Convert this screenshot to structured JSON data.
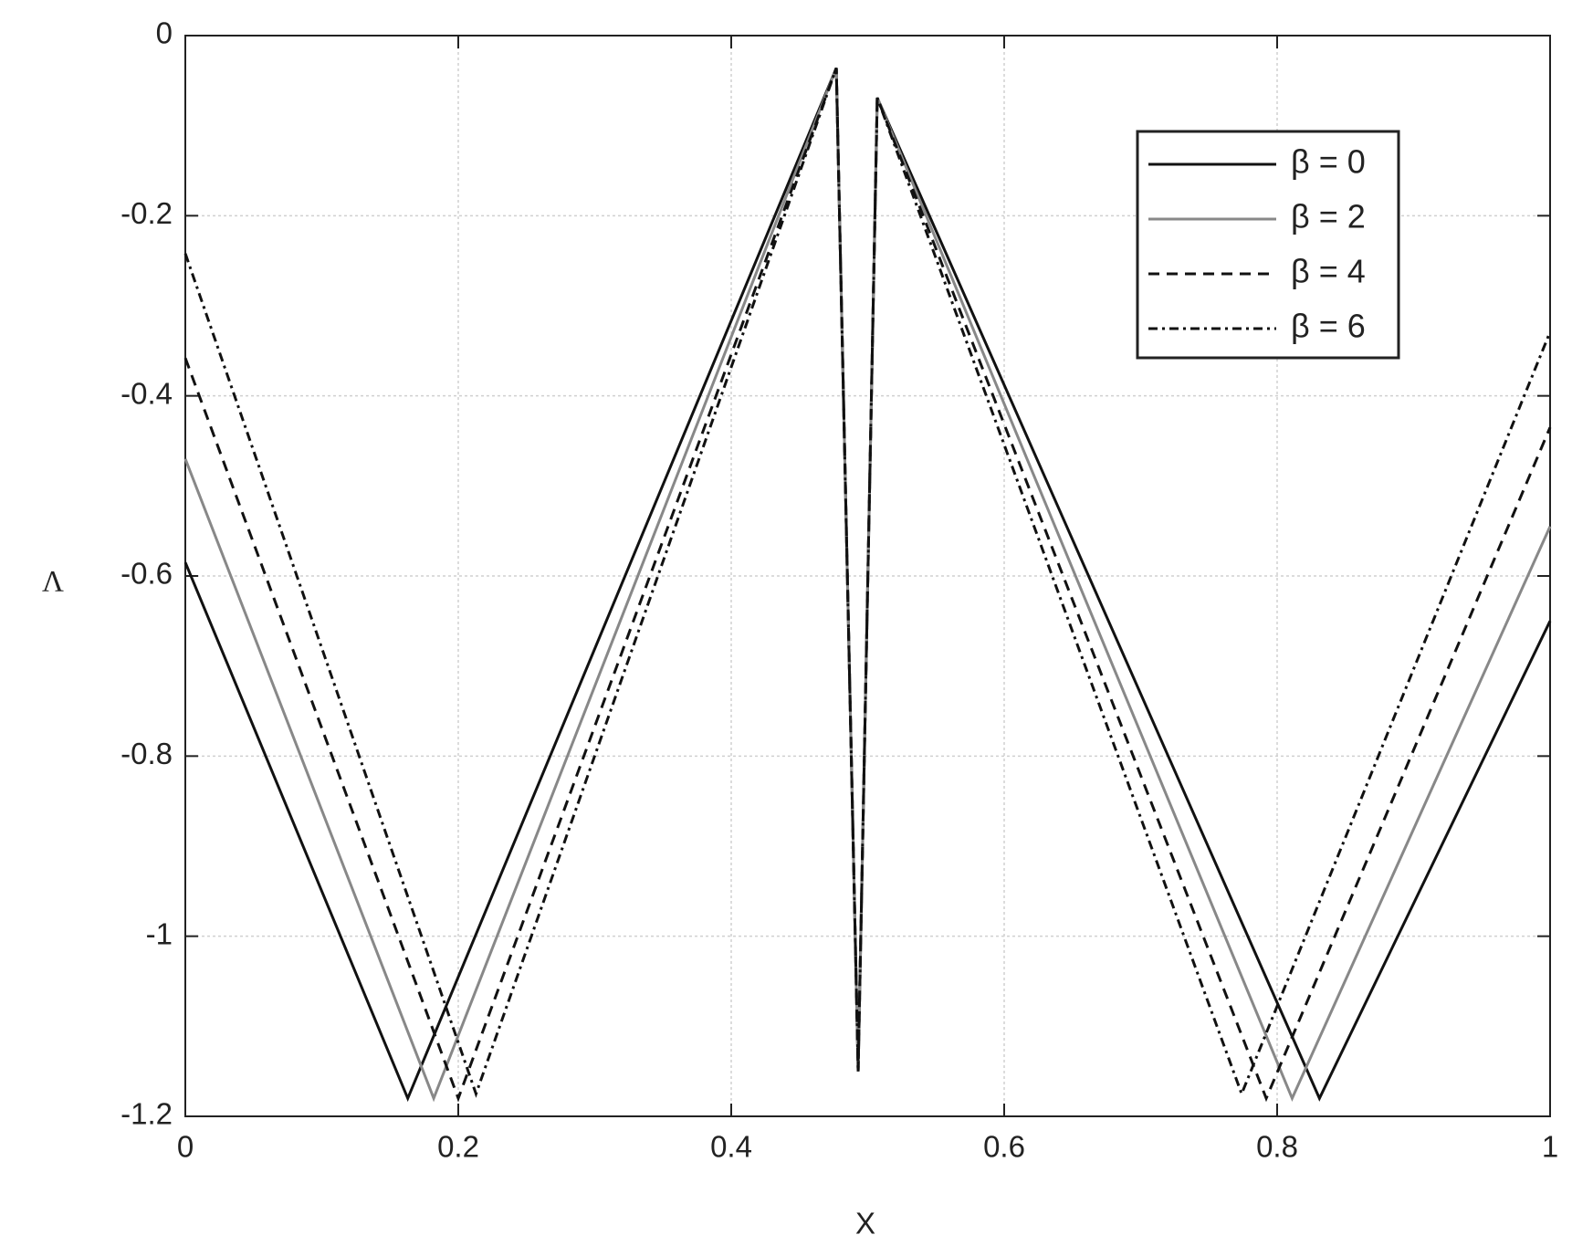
{
  "chart_data": {
    "type": "line",
    "xlabel": "X",
    "ylabel": "Λ",
    "xlim": [
      0,
      1
    ],
    "ylim": [
      -1.2,
      0
    ],
    "xticks": [
      0,
      0.2,
      0.4,
      0.6,
      0.8,
      1
    ],
    "yticks": [
      0,
      -0.2,
      -0.4,
      -0.6,
      -0.8,
      -1,
      -1.2
    ],
    "grid": true,
    "legend": "upper right",
    "series": [
      {
        "name": "β = 0",
        "color": "#111111",
        "dash": "none",
        "x": [
          0,
          0.163,
          0.477,
          0.493,
          0.507,
          0.831,
          1
        ],
        "values": [
          -0.585,
          -1.18,
          -0.036,
          -1.15,
          -0.069,
          -1.18,
          -0.65
        ]
      },
      {
        "name": "β = 2",
        "color": "#888888",
        "dash": "none",
        "x": [
          0,
          0.182,
          0.477,
          0.493,
          0.507,
          0.811,
          1
        ],
        "values": [
          -0.47,
          -1.18,
          -0.036,
          -1.15,
          -0.069,
          -1.18,
          -0.545
        ]
      },
      {
        "name": "β = 4",
        "color": "#111111",
        "dash": "12,8",
        "x": [
          0,
          0.2,
          0.477,
          0.493,
          0.507,
          0.792,
          1
        ],
        "values": [
          -0.358,
          -1.18,
          -0.036,
          -1.15,
          -0.069,
          -1.18,
          -0.435
        ]
      },
      {
        "name": "β = 6",
        "color": "#111111",
        "dash": "10,5,3,5",
        "x": [
          0,
          0.213,
          0.477,
          0.493,
          0.507,
          0.774,
          1
        ],
        "values": [
          -0.242,
          -1.175,
          -0.036,
          -1.15,
          -0.069,
          -1.175,
          -0.329
        ]
      }
    ]
  }
}
